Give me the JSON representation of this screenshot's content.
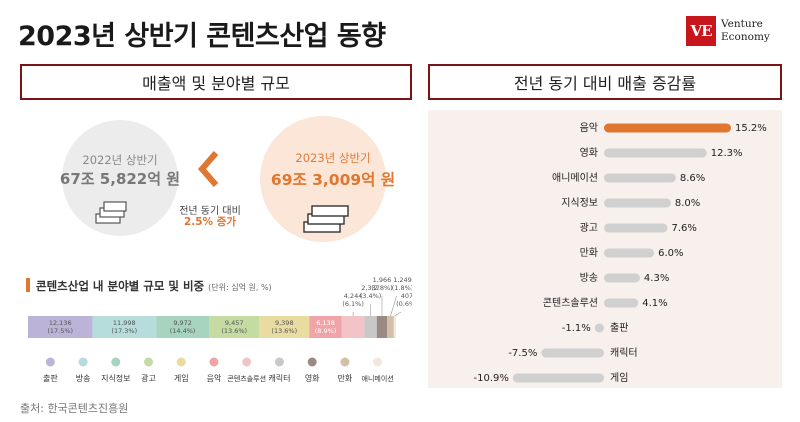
{
  "title": "2023년 상반기 콘텐츠산업 동향",
  "logo": {
    "mark": "VE",
    "line1": "Venture",
    "line2": "Economy"
  },
  "left_header": "매출액 및 분야별 규모",
  "right_header": "전년 동기 대비 매출 증감률",
  "comparison": {
    "prev_title": "2022년 상반기",
    "prev_value": "67조 5,822억 원",
    "curr_title": "2023년 상반기",
    "curr_value": "69조 3,009억 원",
    "yoy_label": "전년 동기 대비",
    "yoy_value": "2.5% 증가"
  },
  "segment": {
    "title_pre": "콘텐츠산업 내 분야별 ",
    "title_bold": "규모 및 비중",
    "unit": "(단위: 십억 원, %)"
  },
  "source": "출처: 한국콘텐츠진흥원",
  "colors": {
    "accent": "#e0762f",
    "dark_red": "#7a1416",
    "gray_bar": "#d0d0d0"
  },
  "chart_data": [
    {
      "type": "bar",
      "orientation": "stacked-horizontal",
      "categories": [
        "출판",
        "방송",
        "지식정보",
        "광고",
        "게임",
        "음악",
        "콘텐츠솔루션",
        "캐릭터",
        "영화",
        "만화",
        "애니메이션"
      ],
      "values": [
        12136,
        11998,
        9972,
        9457,
        9398,
        6138,
        4244,
        2337,
        1966,
        1249,
        407
      ],
      "labels": [
        "12,136\n(17.5%)",
        "11,998\n(17.3%)",
        "9,972\n(14.4%)",
        "9,457\n(13.6%)",
        "9,398\n(13.6%)",
        "6,138\n(8.9%)",
        "4,244\n(6.1%)",
        "2,337\n(3.4%)",
        "1,966\n(2.8%)",
        "1,249\n(1.8%)",
        "407\n(0.6%)"
      ],
      "colors": [
        "#bcb4d8",
        "#b6dcdc",
        "#a6d4bf",
        "#c4dba2",
        "#e8dca0",
        "#f0a4a8",
        "#f2c4c8",
        "#c8c8c8",
        "#9a8a84",
        "#d4c0a8",
        "#f0e8dc"
      ]
    },
    {
      "type": "bar",
      "orientation": "horizontal",
      "categories": [
        "음악",
        "영화",
        "애니메이션",
        "지식정보",
        "광고",
        "만화",
        "방송",
        "콘텐츠솔루션",
        "출판",
        "캐릭터",
        "게임"
      ],
      "values": [
        15.2,
        12.3,
        8.6,
        8.0,
        7.6,
        6.0,
        4.3,
        4.1,
        -1.1,
        -7.5,
        -10.9
      ],
      "labels": [
        "15.2%",
        "12.3%",
        "8.6%",
        "8.0%",
        "7.6%",
        "6.0%",
        "4.3%",
        "4.1%",
        "-1.1%",
        "-7.5%",
        "-10.9%"
      ],
      "highlight_color": "#e0762f",
      "bar_color": "#d0d0d0"
    }
  ]
}
